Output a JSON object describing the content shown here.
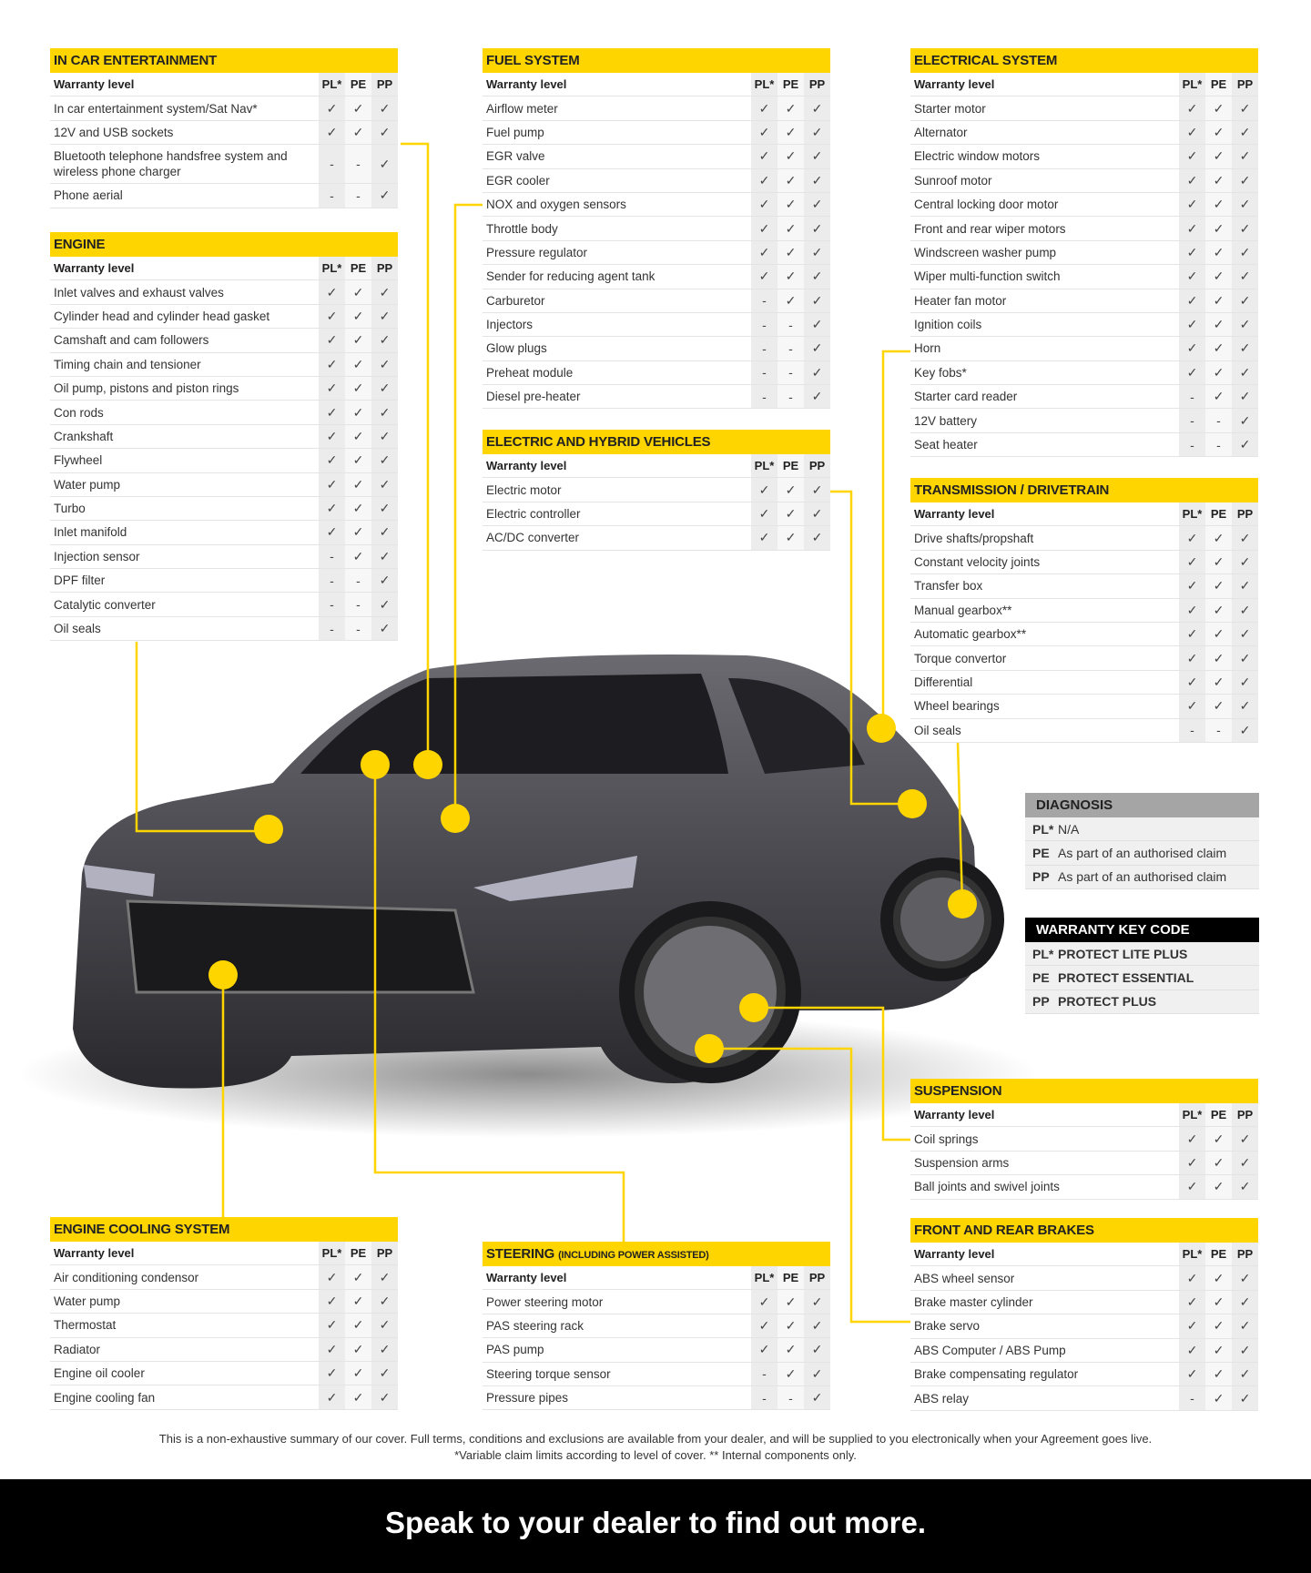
{
  "columns": [
    "PL*",
    "PE",
    "PP"
  ],
  "header_label": "Warranty level",
  "sections": [
    {
      "title": "In car entertainment",
      "rows": [
        {
          "label": "In car entertainment system/Sat Nav*",
          "v": [
            "✓",
            "✓",
            "✓"
          ]
        },
        {
          "label": "12V and USB sockets",
          "v": [
            "✓",
            "✓",
            "✓"
          ]
        },
        {
          "label": "Bluetooth telephone handsfree system and wireless phone charger",
          "v": [
            "-",
            "-",
            "✓"
          ]
        },
        {
          "label": "Phone aerial",
          "v": [
            "-",
            "-",
            "✓"
          ]
        }
      ]
    },
    {
      "title": "Engine",
      "rows": [
        {
          "label": "Inlet valves and exhaust valves",
          "v": [
            "✓",
            "✓",
            "✓"
          ]
        },
        {
          "label": "Cylinder head and cylinder head gasket",
          "v": [
            "✓",
            "✓",
            "✓"
          ]
        },
        {
          "label": "Camshaft and cam followers",
          "v": [
            "✓",
            "✓",
            "✓"
          ]
        },
        {
          "label": "Timing chain and tensioner",
          "v": [
            "✓",
            "✓",
            "✓"
          ]
        },
        {
          "label": "Oil pump, pistons and piston rings",
          "v": [
            "✓",
            "✓",
            "✓"
          ]
        },
        {
          "label": "Con rods",
          "v": [
            "✓",
            "✓",
            "✓"
          ]
        },
        {
          "label": "Crankshaft",
          "v": [
            "✓",
            "✓",
            "✓"
          ]
        },
        {
          "label": "Flywheel",
          "v": [
            "✓",
            "✓",
            "✓"
          ]
        },
        {
          "label": "Water pump",
          "v": [
            "✓",
            "✓",
            "✓"
          ]
        },
        {
          "label": "Turbo",
          "v": [
            "✓",
            "✓",
            "✓"
          ]
        },
        {
          "label": "Inlet manifold",
          "v": [
            "✓",
            "✓",
            "✓"
          ]
        },
        {
          "label": "Injection sensor",
          "v": [
            "-",
            "✓",
            "✓"
          ]
        },
        {
          "label": "DPF filter",
          "v": [
            "-",
            "-",
            "✓"
          ]
        },
        {
          "label": "Catalytic converter",
          "v": [
            "-",
            "-",
            "✓"
          ]
        },
        {
          "label": "Oil seals",
          "v": [
            "-",
            "-",
            "✓"
          ]
        }
      ]
    },
    {
      "title": "Fuel system",
      "rows": [
        {
          "label": "Airflow meter",
          "v": [
            "✓",
            "✓",
            "✓"
          ]
        },
        {
          "label": "Fuel pump",
          "v": [
            "✓",
            "✓",
            "✓"
          ]
        },
        {
          "label": "EGR valve",
          "v": [
            "✓",
            "✓",
            "✓"
          ]
        },
        {
          "label": "EGR cooler",
          "v": [
            "✓",
            "✓",
            "✓"
          ]
        },
        {
          "label": "NOX and oxygen sensors",
          "v": [
            "✓",
            "✓",
            "✓"
          ]
        },
        {
          "label": "Throttle body",
          "v": [
            "✓",
            "✓",
            "✓"
          ]
        },
        {
          "label": "Pressure regulator",
          "v": [
            "✓",
            "✓",
            "✓"
          ]
        },
        {
          "label": "Sender for reducing agent tank",
          "v": [
            "✓",
            "✓",
            "✓"
          ]
        },
        {
          "label": "Carburetor",
          "v": [
            "-",
            "✓",
            "✓"
          ]
        },
        {
          "label": "Injectors",
          "v": [
            "-",
            "-",
            "✓"
          ]
        },
        {
          "label": "Glow plugs",
          "v": [
            "-",
            "-",
            "✓"
          ]
        },
        {
          "label": "Preheat module",
          "v": [
            "-",
            "-",
            "✓"
          ]
        },
        {
          "label": "Diesel pre-heater",
          "v": [
            "-",
            "-",
            "✓"
          ]
        }
      ]
    },
    {
      "title": "Electric and hybrid vehicles",
      "rows": [
        {
          "label": "Electric motor",
          "v": [
            "✓",
            "✓",
            "✓"
          ]
        },
        {
          "label": "Electric controller",
          "v": [
            "✓",
            "✓",
            "✓"
          ]
        },
        {
          "label": "AC/DC converter",
          "v": [
            "✓",
            "✓",
            "✓"
          ]
        }
      ]
    },
    {
      "title": "Electrical system",
      "rows": [
        {
          "label": "Starter motor",
          "v": [
            "✓",
            "✓",
            "✓"
          ]
        },
        {
          "label": "Alternator",
          "v": [
            "✓",
            "✓",
            "✓"
          ]
        },
        {
          "label": "Electric window motors",
          "v": [
            "✓",
            "✓",
            "✓"
          ]
        },
        {
          "label": "Sunroof motor",
          "v": [
            "✓",
            "✓",
            "✓"
          ]
        },
        {
          "label": "Central locking door motor",
          "v": [
            "✓",
            "✓",
            "✓"
          ]
        },
        {
          "label": "Front and rear wiper motors",
          "v": [
            "✓",
            "✓",
            "✓"
          ]
        },
        {
          "label": "Windscreen washer pump",
          "v": [
            "✓",
            "✓",
            "✓"
          ]
        },
        {
          "label": "Wiper multi-function switch",
          "v": [
            "✓",
            "✓",
            "✓"
          ]
        },
        {
          "label": "Heater fan motor",
          "v": [
            "✓",
            "✓",
            "✓"
          ]
        },
        {
          "label": "Ignition coils",
          "v": [
            "✓",
            "✓",
            "✓"
          ]
        },
        {
          "label": "Horn",
          "v": [
            "✓",
            "✓",
            "✓"
          ]
        },
        {
          "label": "Key fobs*",
          "v": [
            "✓",
            "✓",
            "✓"
          ]
        },
        {
          "label": "Starter card reader",
          "v": [
            "-",
            "✓",
            "✓"
          ]
        },
        {
          "label": "12V battery",
          "v": [
            "-",
            "-",
            "✓"
          ]
        },
        {
          "label": "Seat heater",
          "v": [
            "-",
            "-",
            "✓"
          ]
        }
      ]
    },
    {
      "title": "Transmission / Drivetrain",
      "rows": [
        {
          "label": "Drive shafts/propshaft",
          "v": [
            "✓",
            "✓",
            "✓"
          ]
        },
        {
          "label": "Constant velocity joints",
          "v": [
            "✓",
            "✓",
            "✓"
          ]
        },
        {
          "label": "Transfer box",
          "v": [
            "✓",
            "✓",
            "✓"
          ]
        },
        {
          "label": "Manual gearbox**",
          "v": [
            "✓",
            "✓",
            "✓"
          ]
        },
        {
          "label": "Automatic gearbox**",
          "v": [
            "✓",
            "✓",
            "✓"
          ]
        },
        {
          "label": "Torque convertor",
          "v": [
            "✓",
            "✓",
            "✓"
          ]
        },
        {
          "label": "Differential",
          "v": [
            "✓",
            "✓",
            "✓"
          ]
        },
        {
          "label": "Wheel bearings",
          "v": [
            "✓",
            "✓",
            "✓"
          ]
        },
        {
          "label": "Oil seals",
          "v": [
            "-",
            "-",
            "✓"
          ]
        }
      ]
    },
    {
      "title": "Suspension",
      "rows": [
        {
          "label": "Coil springs",
          "v": [
            "✓",
            "✓",
            "✓"
          ]
        },
        {
          "label": "Suspension arms",
          "v": [
            "✓",
            "✓",
            "✓"
          ]
        },
        {
          "label": "Ball joints and swivel joints",
          "v": [
            "✓",
            "✓",
            "✓"
          ]
        }
      ]
    },
    {
      "title": "Front and rear brakes",
      "rows": [
        {
          "label": "ABS wheel sensor",
          "v": [
            "✓",
            "✓",
            "✓"
          ]
        },
        {
          "label": "Brake master cylinder",
          "v": [
            "✓",
            "✓",
            "✓"
          ]
        },
        {
          "label": "Brake servo",
          "v": [
            "✓",
            "✓",
            "✓"
          ]
        },
        {
          "label": "ABS Computer / ABS Pump",
          "v": [
            "✓",
            "✓",
            "✓"
          ]
        },
        {
          "label": "Brake compensating regulator",
          "v": [
            "✓",
            "✓",
            "✓"
          ]
        },
        {
          "label": "ABS relay",
          "v": [
            "-",
            "✓",
            "✓"
          ]
        }
      ]
    },
    {
      "title": "Engine cooling system",
      "rows": [
        {
          "label": "Air conditioning condensor",
          "v": [
            "✓",
            "✓",
            "✓"
          ]
        },
        {
          "label": "Water pump",
          "v": [
            "✓",
            "✓",
            "✓"
          ]
        },
        {
          "label": "Thermostat",
          "v": [
            "✓",
            "✓",
            "✓"
          ]
        },
        {
          "label": "Radiator",
          "v": [
            "✓",
            "✓",
            "✓"
          ]
        },
        {
          "label": "Engine oil cooler",
          "v": [
            "✓",
            "✓",
            "✓"
          ]
        },
        {
          "label": "Engine cooling fan",
          "v": [
            "✓",
            "✓",
            "✓"
          ]
        }
      ]
    },
    {
      "title": "Steering",
      "subtitle": "(including power assisted)",
      "rows": [
        {
          "label": "Power steering motor",
          "v": [
            "✓",
            "✓",
            "✓"
          ]
        },
        {
          "label": "PAS steering rack",
          "v": [
            "✓",
            "✓",
            "✓"
          ]
        },
        {
          "label": "PAS pump",
          "v": [
            "✓",
            "✓",
            "✓"
          ]
        },
        {
          "label": "Steering torque sensor",
          "v": [
            "-",
            "✓",
            "✓"
          ]
        },
        {
          "label": "Pressure pipes",
          "v": [
            "-",
            "-",
            "✓"
          ]
        }
      ]
    }
  ],
  "diagnosis": {
    "title": "DIAGNOSIS",
    "rows": [
      {
        "k": "PL*",
        "v": "N/A"
      },
      {
        "k": "PE",
        "v": "As part of an authorised claim"
      },
      {
        "k": "PP",
        "v": "As part of an authorised claim"
      }
    ]
  },
  "key_code": {
    "title": "WARRANTY KEY CODE",
    "rows": [
      {
        "k": "PL*",
        "v": "PROTECT LITE PLUS"
      },
      {
        "k": "PE",
        "v": "PROTECT ESSENTIAL"
      },
      {
        "k": "PP",
        "v": "PROTECT PLUS"
      }
    ]
  },
  "footnote": {
    "line1": "This is a non-exhaustive summary of our cover. Full terms, conditions and exclusions are available from your dealer, and will be supplied to you electronically when your Agreement goes live.",
    "line2": "*Variable claim limits according to level of cover. ** Internal components only."
  },
  "banner": "Speak to your dealer to find out more.",
  "colors": {
    "accent": "#ffd500",
    "car": "#4a4a4f",
    "banner": "#000000"
  }
}
